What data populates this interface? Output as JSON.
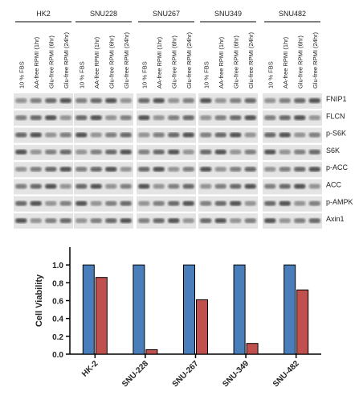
{
  "blot": {
    "cell_lines": [
      "HK2",
      "SNU228",
      "SNU267",
      "SNU349",
      "SNU482"
    ],
    "lanes": [
      "10 % FBS",
      "AA-free RPMI (1hr)",
      "Glu-free RPMI (6hr)",
      "Glu-free RPMI (24hr)"
    ],
    "proteins": [
      "FNIP1",
      "FLCN",
      "p-S6K",
      "S6K",
      "p-ACC",
      "ACC",
      "p-AMPK",
      "Axin1"
    ]
  },
  "chart_data": {
    "type": "bar",
    "y_label": "Cell Viability",
    "categories": [
      "HK-2",
      "SNU-228",
      "SNU-267",
      "SNU-349",
      "SNU-482"
    ],
    "series": [
      {
        "color": "#4a7ebb",
        "values": [
          1,
          1,
          1,
          1,
          1
        ]
      },
      {
        "color": "#c0504d",
        "values": [
          0.86,
          0.05,
          0.61,
          0.12,
          0.72
        ]
      }
    ],
    "ylim": [
      0,
      1.2
    ],
    "yticks": [
      {
        "value": 0,
        "label": "0.0"
      },
      0.2,
      0.4,
      0.6,
      0.8,
      {
        "value": 1,
        "label": "1.0"
      }
    ]
  }
}
